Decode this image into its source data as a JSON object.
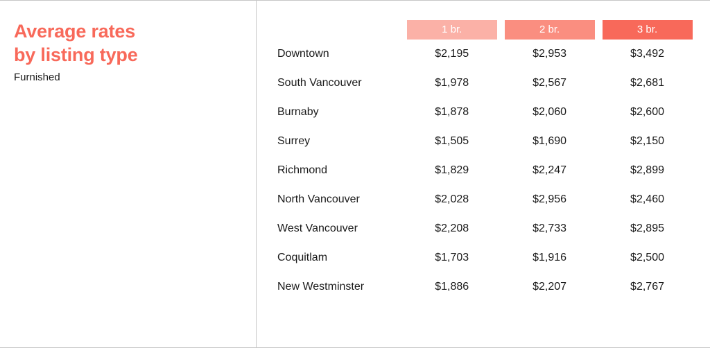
{
  "title_line1": "Average rates",
  "title_line2": "by listing type",
  "subtitle": "Furnished",
  "title_color": "#f8695a",
  "border_color": "#c6c6c6",
  "text_color": "#1a1a1a",
  "background_color": "#ffffff",
  "table": {
    "type": "table",
    "columns": [
      {
        "label": "1 br.",
        "bg_color": "#fbb1a7"
      },
      {
        "label": "2 br.",
        "bg_color": "#fa8e80"
      },
      {
        "label": "3 br.",
        "bg_color": "#f8695a"
      }
    ],
    "header_text_color": "#ffffff",
    "header_fontsize": 15,
    "cell_fontsize": 16,
    "rows": [
      {
        "label": "Downtown",
        "values": [
          "$2,195",
          "$2,953",
          "$3,492"
        ]
      },
      {
        "label": "South Vancouver",
        "values": [
          "$1,978",
          "$2,567",
          "$2,681"
        ]
      },
      {
        "label": "Burnaby",
        "values": [
          "$1,878",
          "$2,060",
          "$2,600"
        ]
      },
      {
        "label": "Surrey",
        "values": [
          "$1,505",
          "$1,690",
          "$2,150"
        ]
      },
      {
        "label": "Richmond",
        "values": [
          "$1,829",
          "$2,247",
          "$2,899"
        ]
      },
      {
        "label": "North Vancouver",
        "values": [
          "$2,028",
          "$2,956",
          "$2,460"
        ]
      },
      {
        "label": "West Vancouver",
        "values": [
          "$2,208",
          "$2,733",
          "$2,895"
        ]
      },
      {
        "label": "Coquitlam",
        "values": [
          "$1,703",
          "$1,916",
          "$2,500"
        ]
      },
      {
        "label": "New Westminster",
        "values": [
          "$1,886",
          "$2,207",
          "$2,767"
        ]
      }
    ]
  }
}
